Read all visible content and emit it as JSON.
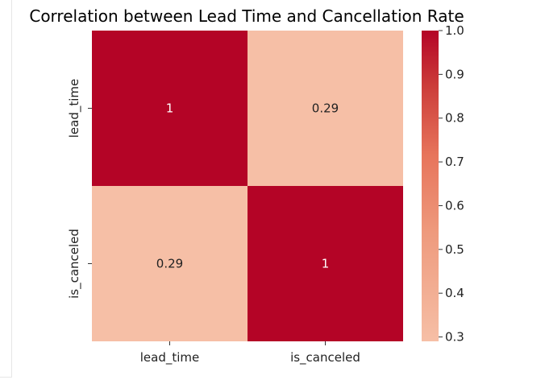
{
  "chart_data": {
    "type": "heatmap",
    "title": "Correlation between Lead Time and Cancellation Rate",
    "x_labels": [
      "lead_time",
      "is_canceled"
    ],
    "y_labels": [
      "lead_time",
      "is_canceled"
    ],
    "values": [
      [
        1,
        0.29
      ],
      [
        0.29,
        1
      ]
    ],
    "annotations": [
      [
        "1",
        "0.29"
      ],
      [
        "0.29",
        "1"
      ]
    ],
    "colormap": "coolwarm-upper",
    "vmin": 0.29,
    "vmax": 1.0,
    "colorbar_ticks": [
      "1.0",
      "0.9",
      "0.8",
      "0.7",
      "0.6",
      "0.5",
      "0.4",
      "0.3"
    ],
    "colorbar_tick_values": [
      1.0,
      0.9,
      0.8,
      0.7,
      0.6,
      0.5,
      0.4,
      0.3
    ],
    "colors": {
      "high": "#b40426",
      "mid": "#e7745b",
      "low": "#f6bfa6"
    }
  }
}
